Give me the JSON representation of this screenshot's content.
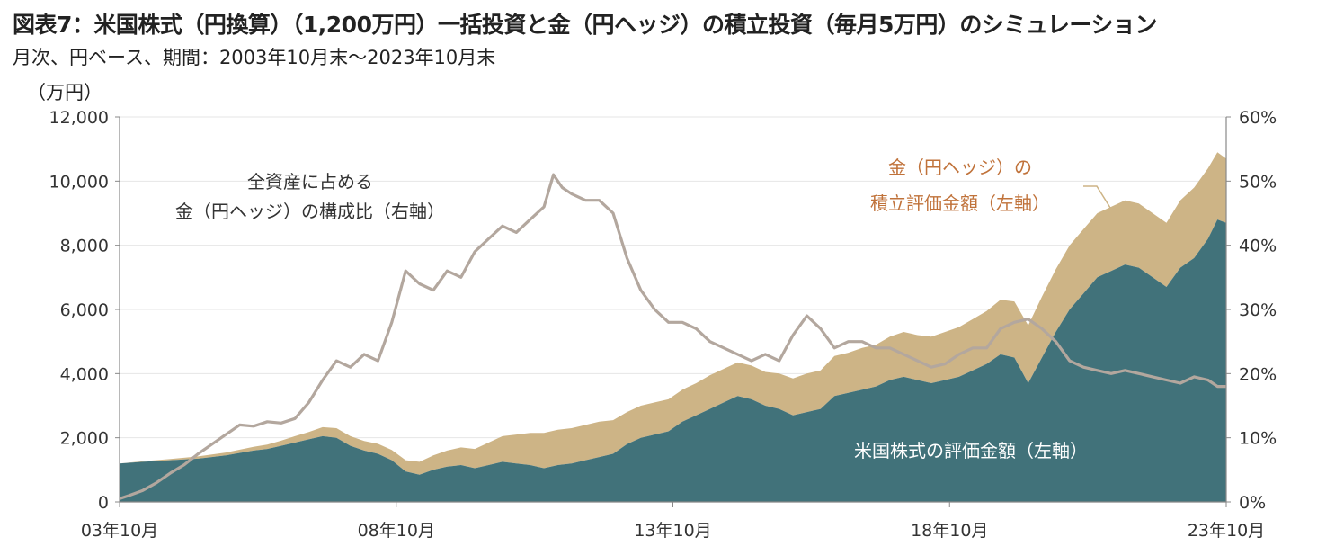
{
  "title": "図表7：米国株式（円換算）（1,200万円）一括投資と金（円ヘッジ）の積立投資（毎月5万円）のシミュレーション",
  "subtitle": "月次、円ベース、期間：2003年10月末～2023年10月末",
  "left_axis_unit": "（万円）",
  "colors": {
    "us_stock_area": "#41727A",
    "gold_area": "#CDB486",
    "ratio_line": "#B3A79E",
    "gold_label": "#C0723A"
  },
  "chart_data": {
    "type": "area",
    "x_ticks": [
      "03年10月",
      "08年10月",
      "13年10月",
      "18年10月",
      "23年10月"
    ],
    "y_left": {
      "ylim": [
        0,
        12000
      ],
      "ticks": [
        "0",
        "2,000",
        "4,000",
        "6,000",
        "8,000",
        "10,000",
        "12,000"
      ]
    },
    "y_right": {
      "ylim": [
        0,
        60
      ],
      "ticks": [
        "0%",
        "10%",
        "20%",
        "30%",
        "40%",
        "50%",
        "60%"
      ]
    },
    "grid": "horizontal",
    "annotations": {
      "ratio": [
        "全資産に占める",
        "金（円ヘッジ）の構成比（右軸）"
      ],
      "gold": [
        "金（円ヘッジ）の",
        "積立評価金額（左軸）"
      ],
      "us": "米国株式の評価金額（左軸）"
    },
    "series": [
      {
        "name": "米国株式の評価金額（左軸）",
        "axis": "left",
        "x": [
          2003.83,
          2004.25,
          2004.75,
          2005.25,
          2005.75,
          2006.25,
          2006.5,
          2006.75,
          2007.0,
          2007.25,
          2007.5,
          2007.75,
          2008.0,
          2008.25,
          2008.5,
          2008.75,
          2009.0,
          2009.25,
          2009.5,
          2009.75,
          2010.0,
          2010.25,
          2010.5,
          2010.75,
          2011.0,
          2011.25,
          2011.5,
          2011.75,
          2012.0,
          2012.25,
          2012.5,
          2012.75,
          2013.0,
          2013.25,
          2013.5,
          2013.75,
          2014.0,
          2014.25,
          2014.5,
          2014.75,
          2015.0,
          2015.25,
          2015.5,
          2015.75,
          2016.0,
          2016.25,
          2016.5,
          2016.75,
          2017.0,
          2017.25,
          2017.5,
          2017.75,
          2018.0,
          2018.25,
          2018.5,
          2018.75,
          2019.0,
          2019.25,
          2019.5,
          2019.75,
          2020.0,
          2020.25,
          2020.5,
          2020.75,
          2021.0,
          2021.25,
          2021.5,
          2021.75,
          2022.0,
          2022.25,
          2022.5,
          2022.75,
          2023.0,
          2023.25,
          2023.5,
          2023.67,
          2023.83
        ],
        "values": [
          1200,
          1250,
          1300,
          1350,
          1450,
          1600,
          1650,
          1750,
          1850,
          1950,
          2050,
          2000,
          1750,
          1600,
          1500,
          1300,
          950,
          850,
          1000,
          1100,
          1150,
          1050,
          1150,
          1250,
          1200,
          1150,
          1050,
          1150,
          1200,
          1300,
          1400,
          1500,
          1800,
          2000,
          2100,
          2200,
          2500,
          2700,
          2900,
          3100,
          3300,
          3200,
          3000,
          2900,
          2700,
          2800,
          2900,
          3300,
          3400,
          3500,
          3600,
          3800,
          3900,
          3800,
          3700,
          3800,
          3900,
          4100,
          4300,
          4600,
          4500,
          3700,
          4500,
          5300,
          6000,
          6500,
          7000,
          7200,
          7400,
          7300,
          7000,
          6700,
          7300,
          7600,
          8200,
          8800,
          8700
        ]
      },
      {
        "name": "金（円ヘッジ）の積立評価金額（左軸）",
        "axis": "left",
        "x": [
          2003.83,
          2004.25,
          2004.75,
          2005.25,
          2005.75,
          2006.25,
          2006.5,
          2006.75,
          2007.0,
          2007.25,
          2007.5,
          2007.75,
          2008.0,
          2008.25,
          2008.5,
          2008.75,
          2009.0,
          2009.25,
          2009.5,
          2009.75,
          2010.0,
          2010.25,
          2010.5,
          2010.75,
          2011.0,
          2011.25,
          2011.5,
          2011.75,
          2012.0,
          2012.25,
          2012.5,
          2012.75,
          2013.0,
          2013.25,
          2013.5,
          2013.75,
          2014.0,
          2014.25,
          2014.5,
          2014.75,
          2015.0,
          2015.25,
          2015.5,
          2015.75,
          2016.0,
          2016.25,
          2016.5,
          2016.75,
          2017.0,
          2017.25,
          2017.5,
          2017.75,
          2018.0,
          2018.25,
          2018.5,
          2018.75,
          2019.0,
          2019.25,
          2019.5,
          2019.75,
          2020.0,
          2020.25,
          2020.5,
          2020.75,
          2021.0,
          2021.25,
          2021.5,
          2021.75,
          2022.0,
          2022.25,
          2022.5,
          2022.75,
          2023.0,
          2023.25,
          2023.5,
          2023.67,
          2023.83
        ],
        "values": [
          0,
          20,
          40,
          70,
          90,
          120,
          140,
          160,
          200,
          230,
          280,
          300,
          300,
          300,
          310,
          320,
          350,
          400,
          450,
          500,
          550,
          600,
          700,
          800,
          900,
          1000,
          1100,
          1100,
          1100,
          1100,
          1100,
          1050,
          1000,
          1000,
          1000,
          1000,
          1000,
          1000,
          1050,
          1050,
          1050,
          1050,
          1050,
          1100,
          1150,
          1200,
          1200,
          1250,
          1250,
          1300,
          1300,
          1350,
          1400,
          1400,
          1450,
          1500,
          1550,
          1600,
          1650,
          1700,
          1750,
          1800,
          1900,
          1950,
          2000,
          2000,
          2000,
          2000,
          2000,
          2000,
          2000,
          2000,
          2100,
          2200,
          2200,
          2100,
          2000
        ]
      },
      {
        "name": "全資産に占める金（円ヘッジ）の構成比（右軸）",
        "axis": "right",
        "x": [
          2003.83,
          2004.0,
          2004.25,
          2004.5,
          2004.75,
          2005.0,
          2005.25,
          2005.5,
          2005.75,
          2006.0,
          2006.25,
          2006.5,
          2006.75,
          2007.0,
          2007.25,
          2007.5,
          2007.75,
          2008.0,
          2008.25,
          2008.5,
          2008.75,
          2009.0,
          2009.25,
          2009.5,
          2009.75,
          2010.0,
          2010.25,
          2010.5,
          2010.75,
          2011.0,
          2011.25,
          2011.5,
          2011.67,
          2011.83,
          2012.0,
          2012.25,
          2012.5,
          2012.75,
          2013.0,
          2013.25,
          2013.5,
          2013.75,
          2014.0,
          2014.25,
          2014.5,
          2014.75,
          2015.0,
          2015.25,
          2015.5,
          2015.75,
          2016.0,
          2016.25,
          2016.5,
          2016.75,
          2017.0,
          2017.25,
          2017.5,
          2017.75,
          2018.0,
          2018.25,
          2018.5,
          2018.75,
          2019.0,
          2019.25,
          2019.5,
          2019.75,
          2020.0,
          2020.25,
          2020.5,
          2020.75,
          2021.0,
          2021.25,
          2021.5,
          2021.75,
          2022.0,
          2022.25,
          2022.5,
          2022.75,
          2023.0,
          2023.25,
          2023.5,
          2023.67,
          2023.83
        ],
        "values": [
          0.5,
          1.0,
          1.8,
          3.0,
          4.5,
          5.8,
          7.5,
          9.0,
          10.5,
          12.0,
          11.8,
          12.5,
          12.3,
          13.0,
          15.5,
          19.0,
          22.0,
          21.0,
          23.0,
          22.0,
          28.0,
          36.0,
          34.0,
          33.0,
          36.0,
          35.0,
          39.0,
          41.0,
          43.0,
          42.0,
          44.0,
          46.0,
          51.0,
          49.0,
          48.0,
          47.0,
          47.0,
          45.0,
          38.0,
          33.0,
          30.0,
          28.0,
          28.0,
          27.0,
          25.0,
          24.0,
          23.0,
          22.0,
          23.0,
          22.0,
          26.0,
          29.0,
          27.0,
          24.0,
          25.0,
          25.0,
          24.0,
          24.0,
          23.0,
          22.0,
          21.0,
          21.5,
          23.0,
          24.0,
          24.0,
          27.0,
          28.0,
          28.5,
          27.0,
          25.0,
          22.0,
          21.0,
          20.5,
          20.0,
          20.5,
          20.0,
          19.5,
          19.0,
          18.5,
          19.5,
          19.0,
          18.0,
          18.0
        ]
      }
    ]
  }
}
